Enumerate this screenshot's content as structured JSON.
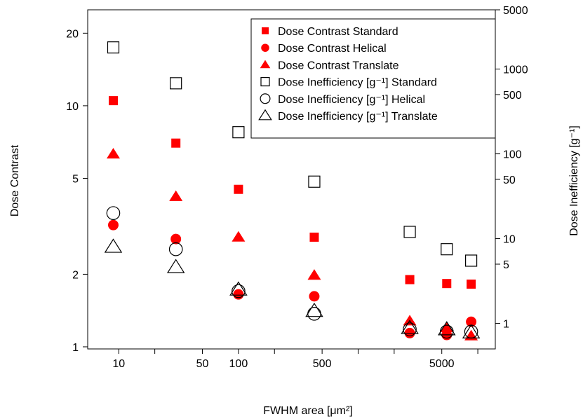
{
  "chart_data": {
    "type": "scatter",
    "xlabel": "FWHM area [μm²]",
    "ylabel_left": "Dose Contrast",
    "ylabel_right": "Dose Inefficiency [g⁻¹]",
    "x_scale": "log",
    "y_left_scale": "log",
    "y_right_scale": "log",
    "x_range": [
      5.5,
      14000
    ],
    "y_left_range": [
      0.98,
      25
    ],
    "y_right_range": [
      0.5,
      5000
    ],
    "x_ticks": [
      10,
      20,
      50,
      100,
      200,
      500,
      1000,
      2000,
      5000,
      10000
    ],
    "x_tick_labels": [
      "10",
      "",
      "50",
      "100",
      "",
      "500",
      "",
      "",
      "5000",
      ""
    ],
    "y_left_ticks": [
      1,
      2,
      5,
      10,
      20
    ],
    "y_left_tick_labels": [
      "1",
      "2",
      "5",
      "10",
      "20"
    ],
    "y_right_ticks": [
      1,
      5,
      10,
      50,
      100,
      500,
      1000,
      5000
    ],
    "y_right_tick_labels": [
      "1",
      "5",
      "10",
      "50",
      "100",
      "500",
      "1000",
      "5000"
    ],
    "legend_position": "top-right",
    "grid": false,
    "series": [
      {
        "name": "Dose Contrast Standard",
        "axis": "left",
        "marker": "square",
        "filled": true,
        "color": "#ff0000",
        "x": [
          9,
          30,
          100,
          430,
          2700,
          5500,
          8800
        ],
        "y": [
          10.5,
          7.0,
          4.5,
          2.85,
          1.9,
          1.83,
          1.82
        ]
      },
      {
        "name": "Dose Contrast Helical",
        "axis": "left",
        "marker": "circle",
        "filled": true,
        "color": "#ff0000",
        "x": [
          9,
          30,
          100,
          430,
          2700,
          5500,
          8800
        ],
        "y": [
          3.2,
          2.8,
          1.65,
          1.62,
          1.14,
          1.12,
          1.27
        ]
      },
      {
        "name": "Dose Contrast Translate",
        "axis": "left",
        "marker": "triangle",
        "filled": true,
        "color": "#ff0000",
        "x": [
          9,
          30,
          100,
          430,
          2700,
          5500,
          8800
        ],
        "y": [
          6.3,
          4.2,
          2.85,
          1.98,
          1.28,
          1.2,
          1.11
        ]
      },
      {
        "name": "Dose Inefficiency [g⁻¹] Standard",
        "axis": "right",
        "marker": "square",
        "filled": false,
        "color": "#000000",
        "x": [
          9,
          30,
          100,
          430,
          2700,
          5500,
          8800
        ],
        "y": [
          1800,
          680,
          180,
          47,
          12,
          7.5,
          5.5
        ]
      },
      {
        "name": "Dose Inefficiency [g⁻¹] Helical",
        "axis": "right",
        "marker": "circle",
        "filled": false,
        "color": "#000000",
        "x": [
          9,
          30,
          100,
          430,
          2700,
          5500,
          8800
        ],
        "y": [
          20,
          7.5,
          2.4,
          1.3,
          0.85,
          0.8,
          0.8
        ]
      },
      {
        "name": "Dose Inefficiency [g⁻¹] Translate",
        "axis": "right",
        "marker": "triangle",
        "filled": false,
        "color": "#000000",
        "x": [
          9,
          30,
          100,
          430,
          2700,
          5500,
          8800
        ],
        "y": [
          8,
          4.6,
          2.5,
          1.4,
          0.88,
          0.85,
          0.78
        ]
      }
    ]
  }
}
